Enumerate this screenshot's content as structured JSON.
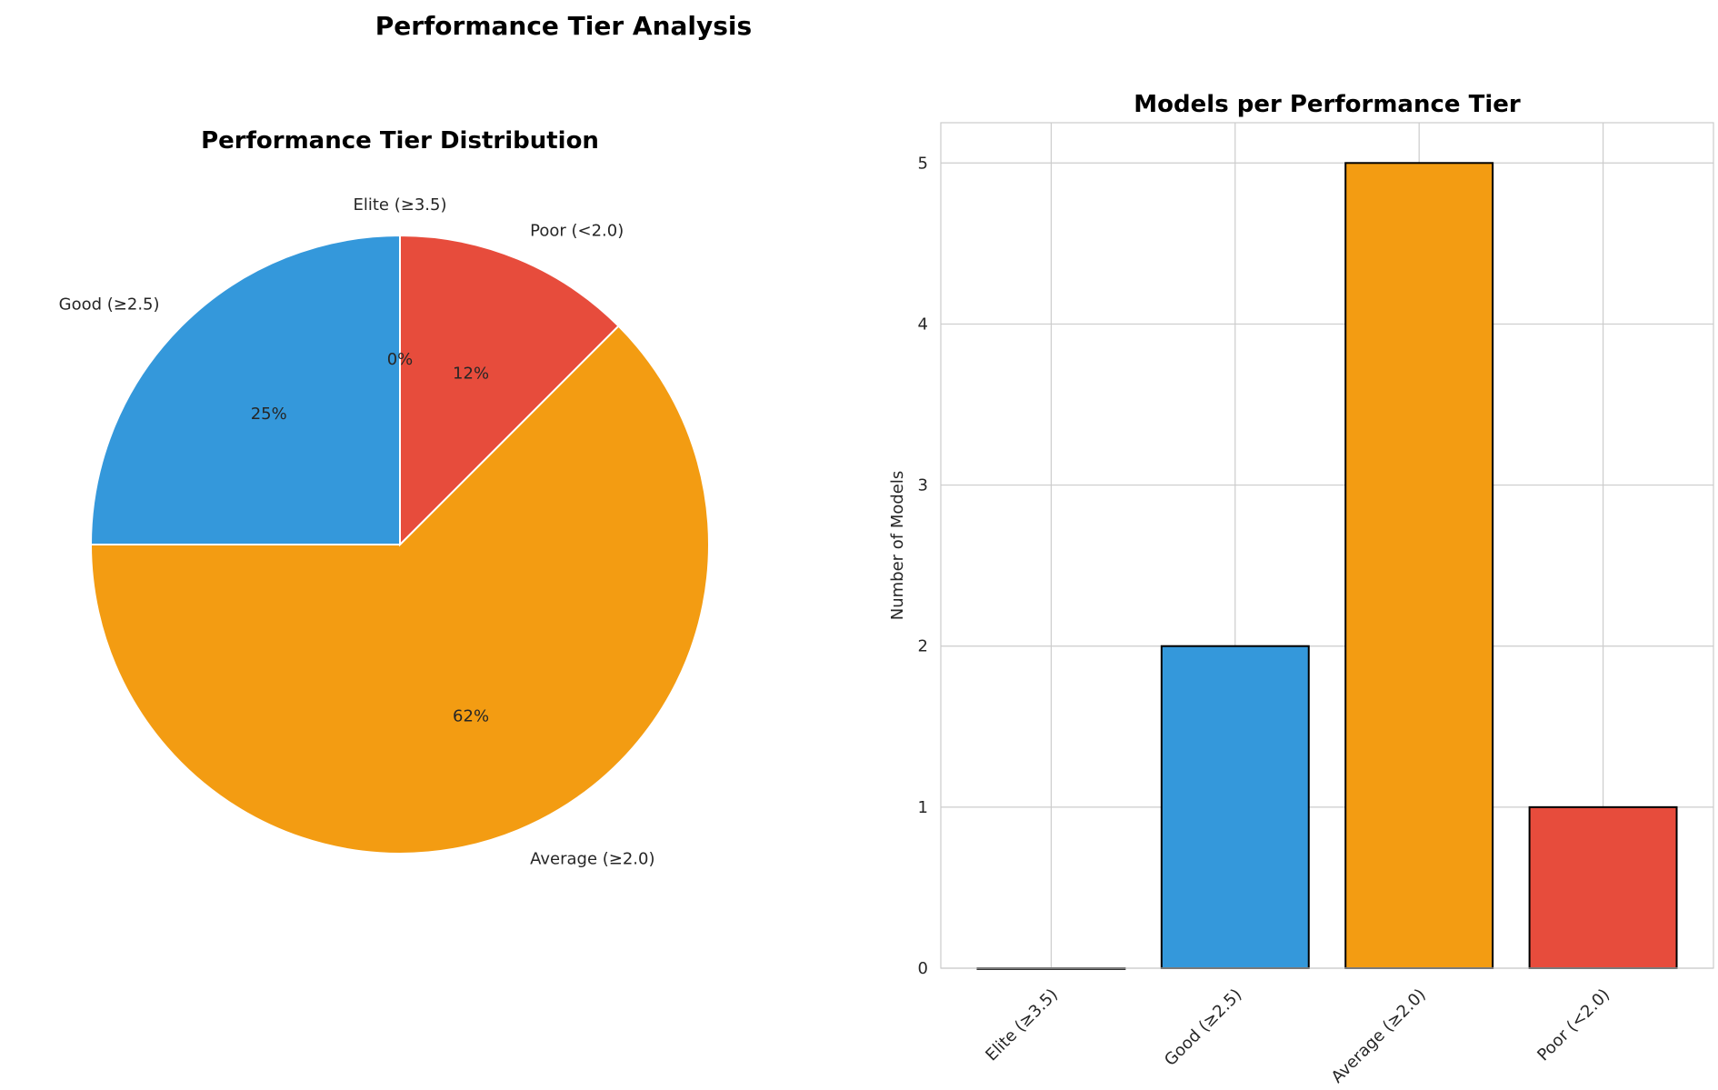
{
  "figure": {
    "title": "Performance Tier Analysis"
  },
  "chart_data": [
    {
      "type": "pie",
      "title": "Performance Tier Distribution",
      "labels": [
        "Elite (≥3.5)",
        "Good (≥2.5)",
        "Average (≥2.0)",
        "Poor (<2.0)"
      ],
      "values": [
        0,
        2,
        5,
        1
      ],
      "percent_labels": [
        "0%",
        "25%",
        "62%",
        "12%"
      ],
      "colors": [
        "#9b59b6",
        "#3498db",
        "#f39c12",
        "#e74c3c"
      ],
      "start_angle": 90,
      "direction": "counterclockwise"
    },
    {
      "type": "bar",
      "title": "Models per Performance Tier",
      "categories": [
        "Elite (≥3.5)",
        "Good (≥2.5)",
        "Average (≥2.0)",
        "Poor (<2.0)"
      ],
      "values": [
        0,
        2,
        5,
        1
      ],
      "colors": [
        "#9b59b6",
        "#3498db",
        "#f39c12",
        "#e74c3c"
      ],
      "xlabel": "",
      "ylabel": "Number of Models",
      "ylim": [
        0,
        5.25
      ],
      "yticks": [
        0,
        1,
        2,
        3,
        4,
        5
      ],
      "grid": true
    }
  ]
}
